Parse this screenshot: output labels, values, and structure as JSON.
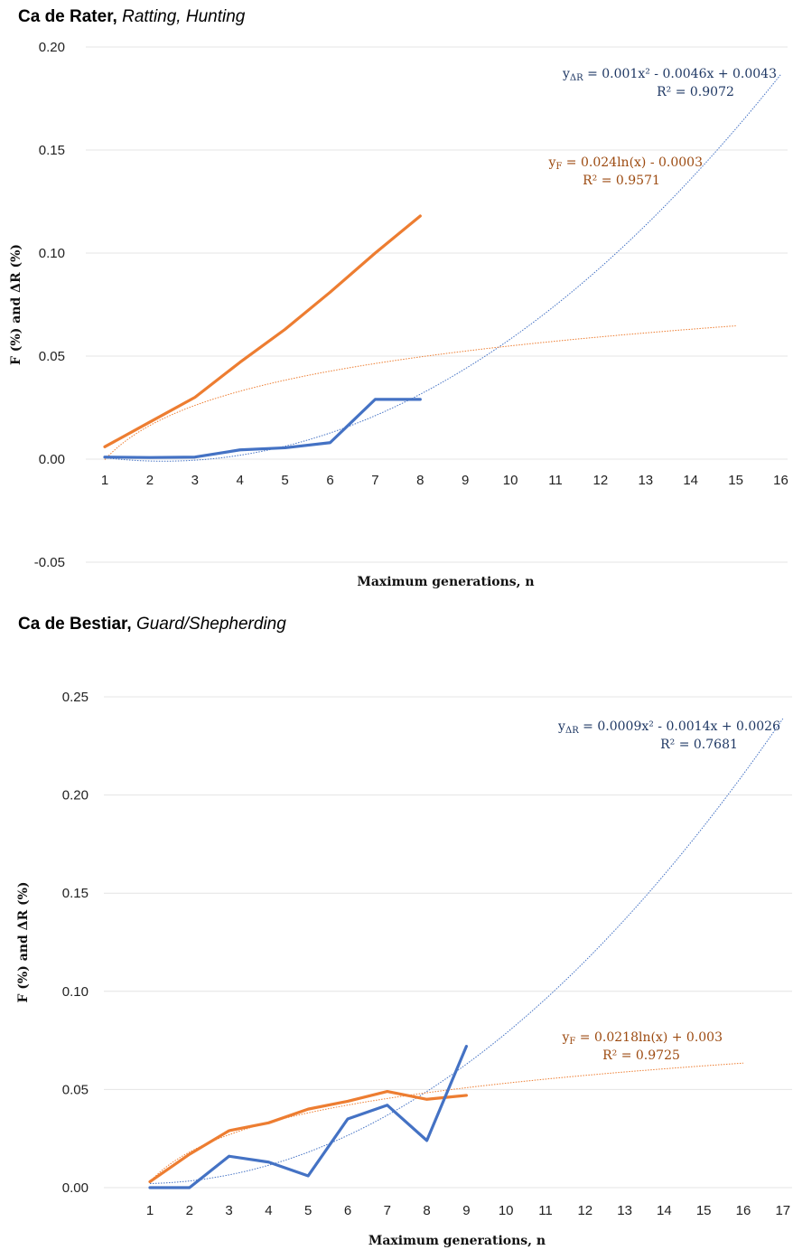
{
  "colors": {
    "F": "#ED7D31",
    "R": "#4472C4",
    "F_trend": "#ED7D31",
    "R_trend": "#4472C4",
    "grid": "#e4e4e4",
    "eq_R": "#1f3864",
    "eq_F": "#9c4a10"
  },
  "chart_data": [
    {
      "type": "line",
      "title_bold": "Ca de Rater,",
      "title_italic": "Ratting, Hunting",
      "xlabel": "Maximum generations, n",
      "ylabel": "F (%) and ΔR (%)",
      "ylim": [
        -0.05,
        0.2
      ],
      "yticks": [
        -0.05,
        0.0,
        0.05,
        0.1,
        0.15,
        0.2
      ],
      "ytick_labels": [
        "-0.05",
        "0.00",
        "0.05",
        "0.10",
        "0.15",
        "0.20"
      ],
      "xticks": [
        1,
        2,
        3,
        4,
        5,
        6,
        7,
        8,
        9,
        10,
        11,
        12,
        13,
        14,
        15,
        16
      ],
      "xlim": [
        1,
        16
      ],
      "grid": true,
      "series": [
        {
          "key": "F",
          "x": [
            1,
            2,
            3,
            4,
            5,
            6,
            7,
            8
          ],
          "values": [
            0.006,
            0.018,
            0.03,
            0.047,
            0.063,
            0.081,
            0.1,
            0.118
          ]
        },
        {
          "key": "R",
          "x": [
            1,
            2,
            3,
            4,
            5,
            6,
            7,
            8
          ],
          "values": [
            0.001,
            0.0008,
            0.001,
            0.0045,
            0.0055,
            0.008,
            0.029,
            0.029
          ]
        }
      ],
      "trendlines": [
        {
          "key": "R",
          "kind": "poly",
          "coef": [
            0.001,
            -0.0046,
            0.0043
          ],
          "xrange": [
            1,
            16
          ]
        },
        {
          "key": "F",
          "kind": "log",
          "coef": [
            0.024,
            -0.0003
          ],
          "xrange": [
            1,
            15
          ]
        }
      ],
      "equations": {
        "R_sym": "y",
        "R_sub": "ΔR",
        "R_text": " = 0.001x² - 0.0046x + 0.0043",
        "R_r2": "R² = 0.9072",
        "F_sym": "y",
        "F_sub": "F",
        "F_text": " = 0.024ln(x) - 0.0003",
        "F_r2": "R² = 0.9571"
      }
    },
    {
      "type": "line",
      "title_bold": "Ca de Bestiar,",
      "title_italic": "Guard/Shepherding",
      "xlabel": "Maximum generations, n",
      "ylabel": "F (%) and ΔR (%)",
      "ylim": [
        0.0,
        0.25
      ],
      "yticks": [
        0.0,
        0.05,
        0.1,
        0.15,
        0.2,
        0.25
      ],
      "ytick_labels": [
        "0.00",
        "0.05",
        "0.10",
        "0.15",
        "0.20",
        "0.25"
      ],
      "xticks": [
        1,
        2,
        3,
        4,
        5,
        6,
        7,
        8,
        9,
        10,
        11,
        12,
        13,
        14,
        15,
        16,
        17
      ],
      "xlim": [
        1,
        17
      ],
      "grid": true,
      "series": [
        {
          "key": "F",
          "x": [
            1,
            2,
            3,
            4,
            5,
            6,
            7,
            8,
            9
          ],
          "values": [
            0.003,
            0.017,
            0.029,
            0.033,
            0.04,
            0.044,
            0.049,
            0.045,
            0.047
          ]
        },
        {
          "key": "R",
          "x": [
            1,
            2,
            3,
            4,
            5,
            6,
            7,
            8,
            9
          ],
          "values": [
            0.0,
            0.0,
            0.016,
            0.013,
            0.006,
            0.035,
            0.042,
            0.024,
            0.072
          ]
        }
      ],
      "trendlines": [
        {
          "key": "R",
          "kind": "poly",
          "coef": [
            0.0009,
            -0.0014,
            0.0026
          ],
          "xrange": [
            1,
            17
          ]
        },
        {
          "key": "F",
          "kind": "log",
          "coef": [
            0.0218,
            0.003
          ],
          "xrange": [
            1,
            16
          ]
        }
      ],
      "equations": {
        "R_sym": "y",
        "R_sub": "ΔR",
        "R_text": " = 0.0009x² - 0.0014x + 0.0026",
        "R_r2": "R² = 0.7681",
        "F_sym": "y",
        "F_sub": "F",
        "F_text": " = 0.0218ln(x) + 0.003",
        "F_r2": "R² = 0.9725"
      }
    }
  ]
}
